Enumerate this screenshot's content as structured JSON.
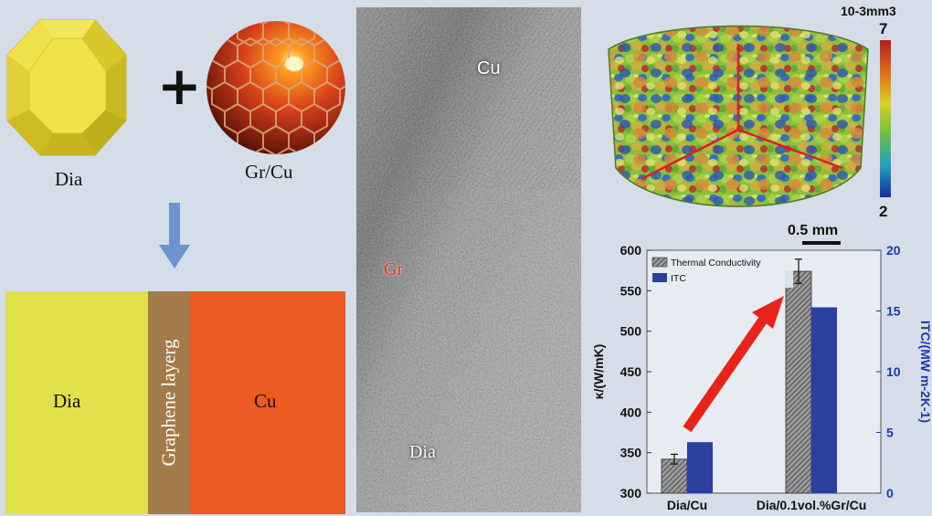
{
  "schematic": {
    "diamond_label": "Dia",
    "plus_sign": "+",
    "grcu_label": "Gr/Cu",
    "layers": {
      "dia": "Dia",
      "graphene": "Graphene layerg",
      "cu": "Cu"
    }
  },
  "tem": {
    "cu_label": "Cu",
    "gr_label": "Gr",
    "dia_label": "Dia"
  },
  "tomography": {
    "colorbar_unit": "10-3mm3",
    "colorbar_max": "7",
    "colorbar_min": "2",
    "scale_bar": "0.5 mm"
  },
  "colors": {
    "background": "#d4dde8",
    "diamond_yellow": "#dfe04a",
    "graphene_brown": "#a37a4a",
    "copper_orange": "#ea5a22",
    "bar_blue": "#2a3f9e",
    "arrow_red": "#e8231a"
  },
  "chart_data": {
    "type": "bar",
    "categories": [
      "Dia/Cu",
      "Dia/0.1vol.%Gr/Cu"
    ],
    "series": [
      {
        "name": "Thermal Conductivity",
        "axis": "left",
        "values": [
          342,
          574
        ],
        "errors": [
          6,
          15
        ],
        "pattern": "hatched"
      },
      {
        "name": "ITC",
        "axis": "right",
        "values": [
          4.2,
          15.3
        ],
        "color": "#2a3f9e"
      }
    ],
    "ylabel": "κ/(W/mK)",
    "ylabel2": "ITC/(MW m-2K-1)",
    "ylim": [
      300,
      600
    ],
    "ylim2": [
      0,
      20
    ],
    "yticks": [
      "300",
      "350",
      "400",
      "450",
      "500",
      "550",
      "600"
    ],
    "yticks2": [
      "0",
      "5",
      "10",
      "15",
      "20"
    ],
    "legend": "top-left"
  }
}
